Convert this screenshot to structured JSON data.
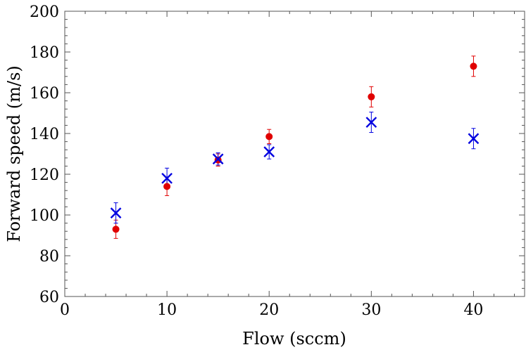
{
  "chart_data": {
    "type": "scatter",
    "xlabel": "Flow (sccm)",
    "ylabel": "Forward speed (m/s)",
    "xlim": [
      0,
      45
    ],
    "ylim": [
      60,
      200
    ],
    "x_ticks": [
      0,
      10,
      20,
      30,
      40
    ],
    "y_ticks": [
      60,
      80,
      100,
      120,
      140,
      160,
      180,
      200
    ],
    "grid": false,
    "series": [
      {
        "marker": "circle",
        "color": "#e00000",
        "points": [
          {
            "x": 5,
            "y": 93,
            "err": 4.5
          },
          {
            "x": 10,
            "y": 114,
            "err": 4.5
          },
          {
            "x": 15,
            "y": 127,
            "err": 3
          },
          {
            "x": 20,
            "y": 138.5,
            "err": 3.5
          },
          {
            "x": 30,
            "y": 158,
            "err": 5
          },
          {
            "x": 40,
            "y": 173,
            "err": 5
          }
        ]
      },
      {
        "marker": "cross",
        "color": "#0000e0",
        "points": [
          {
            "x": 5,
            "y": 101,
            "err": 5
          },
          {
            "x": 10,
            "y": 118,
            "err": 5
          },
          {
            "x": 15,
            "y": 127.5,
            "err": 3
          },
          {
            "x": 20,
            "y": 131,
            "err": 3.5
          },
          {
            "x": 30,
            "y": 145.5,
            "err": 5
          },
          {
            "x": 40,
            "y": 137.5,
            "err": 5
          }
        ]
      }
    ]
  }
}
